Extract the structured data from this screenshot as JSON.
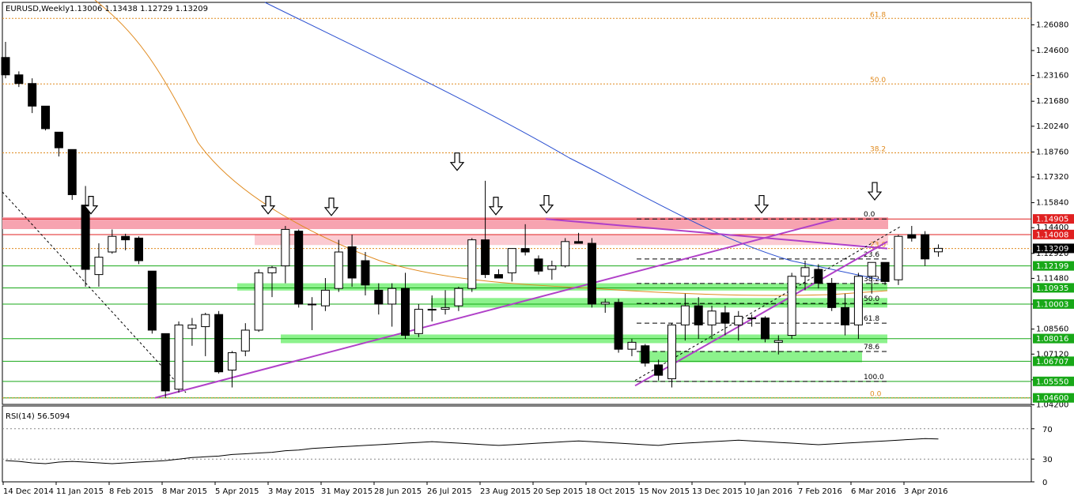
{
  "header": {
    "symbol": "EURUSD,Weekly",
    "ohlc": "1.13006 1.13438 1.12729 1.13209"
  },
  "rsi_header": {
    "label": "RSI(14) 56.5094"
  },
  "chart_data": [
    {
      "type": "candlestick",
      "ylim": [
        1.042,
        1.266
      ],
      "x_tick_labels": [
        "14 Dec 2014",
        "11 Jan 2015",
        "8 Feb 2015",
        "8 Mar 2015",
        "5 Apr 2015",
        "3 May 2015",
        "31 May 2015",
        "28 Jun 2015",
        "26 Jul 2015",
        "23 Aug 2015",
        "20 Sep 2015",
        "18 Oct 2015",
        "15 Nov 2015",
        "13 Dec 2015",
        "10 Jan 2016",
        "7 Feb 2016",
        "6 Mar 2016",
        "3 Apr 2016"
      ],
      "y_tick_labels": [
        "1.26080",
        "1.24600",
        "1.23160",
        "1.21680",
        "1.20240",
        "1.18760",
        "1.17320",
        "1.15840",
        "1.14400",
        "1.12920",
        "1.11480",
        "1.10000",
        "1.08560",
        "1.07120",
        "1.05640",
        "1.04200"
      ],
      "price_tags": [
        {
          "value": "1.14905",
          "color": "#e02020"
        },
        {
          "value": "1.14008",
          "color": "#e02020"
        },
        {
          "value": "1.13209",
          "color": "#000000"
        },
        {
          "value": "1.12199",
          "color": "#18a818"
        },
        {
          "value": "1.10935",
          "color": "#18a818"
        },
        {
          "value": "1.10003",
          "color": "#18a818"
        },
        {
          "value": "1.08016",
          "color": "#18a818"
        },
        {
          "value": "1.06707",
          "color": "#18a818"
        },
        {
          "value": "1.05550",
          "color": "#18a818"
        },
        {
          "value": "1.04600",
          "color": "#18a818"
        }
      ],
      "fib_major": [
        {
          "label": "61.8",
          "price": 1.2645
        },
        {
          "label": "50.0",
          "price": 1.2268
        },
        {
          "label": "38.2",
          "price": 1.1871
        },
        {
          "label": "23.6",
          "price": 1.132
        },
        {
          "label": "0.0",
          "price": 1.046
        }
      ],
      "fib_minor": [
        {
          "label": "0.0",
          "price": 1.149
        },
        {
          "label": "23.6",
          "price": 1.126
        },
        {
          "label": "38.2",
          "price": 1.1119
        },
        {
          "label": "50.0",
          "price": 1.1004
        },
        {
          "label": "61.8",
          "price": 1.089
        },
        {
          "label": "78.6",
          "price": 1.0727
        },
        {
          "label": "100.0",
          "price": 1.0555
        }
      ],
      "candles": [
        {
          "o": 1.242,
          "h": 1.251,
          "l": 1.23,
          "c": 1.232
        },
        {
          "o": 1.232,
          "h": 1.234,
          "l": 1.225,
          "c": 1.227
        },
        {
          "o": 1.227,
          "h": 1.23,
          "l": 1.21,
          "c": 1.214
        },
        {
          "o": 1.214,
          "h": 1.214,
          "l": 1.2,
          "c": 1.201
        },
        {
          "o": 1.199,
          "h": 1.199,
          "l": 1.185,
          "c": 1.19
        },
        {
          "o": 1.189,
          "h": 1.189,
          "l": 1.16,
          "c": 1.163
        },
        {
          "o": 1.157,
          "h": 1.168,
          "l": 1.11,
          "c": 1.12
        },
        {
          "o": 1.117,
          "h": 1.135,
          "l": 1.11,
          "c": 1.127
        },
        {
          "o": 1.13,
          "h": 1.143,
          "l": 1.129,
          "c": 1.139
        },
        {
          "o": 1.139,
          "h": 1.1405,
          "l": 1.131,
          "c": 1.137
        },
        {
          "o": 1.138,
          "h": 1.139,
          "l": 1.123,
          "c": 1.125
        },
        {
          "o": 1.119,
          "h": 1.119,
          "l": 1.083,
          "c": 1.085
        },
        {
          "o": 1.083,
          "h": 1.083,
          "l": 1.046,
          "c": 1.05
        },
        {
          "o": 1.051,
          "h": 1.09,
          "l": 1.049,
          "c": 1.088
        },
        {
          "o": 1.086,
          "h": 1.092,
          "l": 1.076,
          "c": 1.088
        },
        {
          "o": 1.087,
          "h": 1.095,
          "l": 1.07,
          "c": 1.094
        },
        {
          "o": 1.094,
          "h": 1.096,
          "l": 1.06,
          "c": 1.061
        },
        {
          "o": 1.062,
          "h": 1.073,
          "l": 1.052,
          "c": 1.072
        },
        {
          "o": 1.073,
          "h": 1.089,
          "l": 1.07,
          "c": 1.085
        },
        {
          "o": 1.085,
          "h": 1.12,
          "l": 1.084,
          "c": 1.118
        },
        {
          "o": 1.118,
          "h": 1.122,
          "l": 1.104,
          "c": 1.121
        },
        {
          "o": 1.122,
          "h": 1.145,
          "l": 1.112,
          "c": 1.143
        },
        {
          "o": 1.142,
          "h": 1.143,
          "l": 1.098,
          "c": 1.1
        },
        {
          "o": 1.1,
          "h": 1.104,
          "l": 1.085,
          "c": 1.1
        },
        {
          "o": 1.099,
          "h": 1.115,
          "l": 1.096,
          "c": 1.108
        },
        {
          "o": 1.109,
          "h": 1.137,
          "l": 1.107,
          "c": 1.13
        },
        {
          "o": 1.133,
          "h": 1.14,
          "l": 1.11,
          "c": 1.115
        },
        {
          "o": 1.125,
          "h": 1.13,
          "l": 1.105,
          "c": 1.111
        },
        {
          "o": 1.108,
          "h": 1.112,
          "l": 1.094,
          "c": 1.1
        },
        {
          "o": 1.1,
          "h": 1.112,
          "l": 1.087,
          "c": 1.109
        },
        {
          "o": 1.109,
          "h": 1.118,
          "l": 1.08,
          "c": 1.082
        },
        {
          "o": 1.083,
          "h": 1.1,
          "l": 1.081,
          "c": 1.097
        },
        {
          "o": 1.097,
          "h": 1.105,
          "l": 1.09,
          "c": 1.097
        },
        {
          "o": 1.097,
          "h": 1.108,
          "l": 1.094,
          "c": 1.098
        },
        {
          "o": 1.099,
          "h": 1.11,
          "l": 1.096,
          "c": 1.109
        },
        {
          "o": 1.109,
          "h": 1.138,
          "l": 1.107,
          "c": 1.137
        },
        {
          "o": 1.137,
          "h": 1.171,
          "l": 1.115,
          "c": 1.117
        },
        {
          "o": 1.117,
          "h": 1.12,
          "l": 1.115,
          "c": 1.115
        },
        {
          "o": 1.118,
          "h": 1.132,
          "l": 1.113,
          "c": 1.132
        },
        {
          "o": 1.132,
          "h": 1.146,
          "l": 1.128,
          "c": 1.13
        },
        {
          "o": 1.126,
          "h": 1.128,
          "l": 1.117,
          "c": 1.119
        },
        {
          "o": 1.12,
          "h": 1.125,
          "l": 1.114,
          "c": 1.122
        },
        {
          "o": 1.122,
          "h": 1.138,
          "l": 1.121,
          "c": 1.136
        },
        {
          "o": 1.136,
          "h": 1.141,
          "l": 1.135,
          "c": 1.135
        },
        {
          "o": 1.135,
          "h": 1.138,
          "l": 1.098,
          "c": 1.1
        },
        {
          "o": 1.1,
          "h": 1.103,
          "l": 1.095,
          "c": 1.101
        },
        {
          "o": 1.101,
          "h": 1.103,
          "l": 1.072,
          "c": 1.074
        },
        {
          "o": 1.074,
          "h": 1.08,
          "l": 1.07,
          "c": 1.078
        },
        {
          "o": 1.076,
          "h": 1.077,
          "l": 1.064,
          "c": 1.066
        },
        {
          "o": 1.065,
          "h": 1.068,
          "l": 1.056,
          "c": 1.059
        },
        {
          "o": 1.057,
          "h": 1.089,
          "l": 1.052,
          "c": 1.088
        },
        {
          "o": 1.088,
          "h": 1.106,
          "l": 1.079,
          "c": 1.099
        },
        {
          "o": 1.099,
          "h": 1.104,
          "l": 1.08,
          "c": 1.088
        },
        {
          "o": 1.088,
          "h": 1.099,
          "l": 1.08,
          "c": 1.096
        },
        {
          "o": 1.095,
          "h": 1.099,
          "l": 1.082,
          "c": 1.089
        },
        {
          "o": 1.088,
          "h": 1.096,
          "l": 1.079,
          "c": 1.093
        },
        {
          "o": 1.092,
          "h": 1.094,
          "l": 1.087,
          "c": 1.092
        },
        {
          "o": 1.092,
          "h": 1.093,
          "l": 1.078,
          "c": 1.08
        },
        {
          "o": 1.078,
          "h": 1.082,
          "l": 1.071,
          "c": 1.079
        },
        {
          "o": 1.082,
          "h": 1.118,
          "l": 1.08,
          "c": 1.116
        },
        {
          "o": 1.116,
          "h": 1.125,
          "l": 1.108,
          "c": 1.121
        },
        {
          "o": 1.12,
          "h": 1.123,
          "l": 1.109,
          "c": 1.112
        },
        {
          "o": 1.112,
          "h": 1.115,
          "l": 1.096,
          "c": 1.098
        },
        {
          "o": 1.098,
          "h": 1.106,
          "l": 1.082,
          "c": 1.088
        },
        {
          "o": 1.088,
          "h": 1.118,
          "l": 1.08,
          "c": 1.116
        },
        {
          "o": 1.116,
          "h": 1.123,
          "l": 1.106,
          "c": 1.124
        },
        {
          "o": 1.124,
          "h": 1.124,
          "l": 1.111,
          "c": 1.113
        },
        {
          "o": 1.114,
          "h": 1.14,
          "l": 1.111,
          "c": 1.139
        },
        {
          "o": 1.14,
          "h": 1.145,
          "l": 1.136,
          "c": 1.138
        },
        {
          "o": 1.14,
          "h": 1.142,
          "l": 1.122,
          "c": 1.126
        },
        {
          "o": 1.1301,
          "h": 1.1344,
          "l": 1.1273,
          "c": 1.1321
        }
      ]
    },
    {
      "type": "line",
      "name": "RSI(14)",
      "ylim": [
        0,
        100
      ],
      "y_tick_labels": [
        "70",
        "30",
        "0"
      ],
      "levels": [
        70,
        30
      ],
      "values": [
        28,
        27,
        25,
        24,
        26,
        27,
        26,
        25,
        24,
        25,
        26,
        27,
        28,
        30,
        32,
        33,
        34,
        36,
        37,
        38,
        39,
        41,
        42,
        44,
        45,
        46,
        47,
        48,
        49,
        50,
        51,
        52,
        53,
        52,
        51,
        50,
        49,
        48,
        49,
        50,
        51,
        52,
        53,
        54,
        53,
        52,
        51,
        50,
        49,
        48,
        50,
        51,
        52,
        53,
        54,
        55,
        54,
        53,
        52,
        51,
        50,
        49,
        50,
        51,
        52,
        53,
        54,
        55,
        56,
        57,
        56.5
      ]
    }
  ]
}
